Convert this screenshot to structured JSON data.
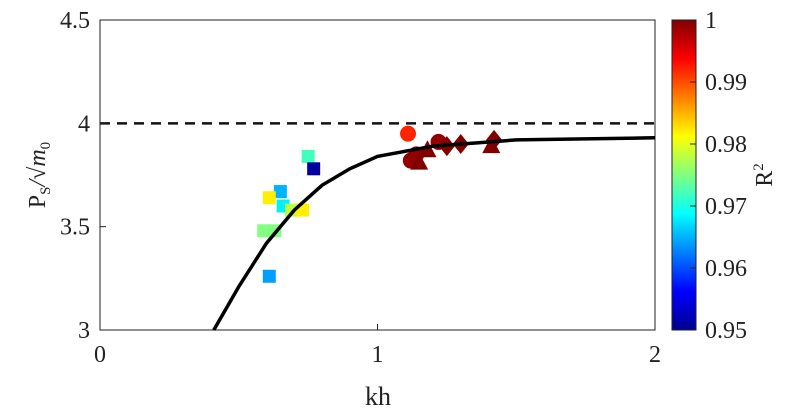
{
  "chart_data": {
    "type": "scatter",
    "xlabel": "kh",
    "ylabel_main": "P",
    "ylabel_sub": "S",
    "ylabel_rest": "/√m",
    "ylabel_sub2": "0",
    "xlim": [
      0,
      2
    ],
    "ylim": [
      3,
      4.5
    ],
    "xticks": [
      "0",
      "1",
      "2"
    ],
    "yticks": [
      "3",
      "3.5",
      "4",
      "4.5"
    ],
    "reference_line": {
      "y": 4,
      "style": "dashed"
    },
    "fit_curve": [
      [
        0.41,
        3.0
      ],
      [
        0.5,
        3.21
      ],
      [
        0.6,
        3.42
      ],
      [
        0.7,
        3.58
      ],
      [
        0.8,
        3.7
      ],
      [
        0.9,
        3.78
      ],
      [
        1.0,
        3.84
      ],
      [
        1.2,
        3.89
      ],
      [
        1.5,
        3.92
      ],
      [
        2.0,
        3.93
      ]
    ],
    "points": [
      {
        "x": 0.75,
        "y": 3.84,
        "r2": 0.972,
        "marker": "square"
      },
      {
        "x": 0.77,
        "y": 3.78,
        "r2": 0.951,
        "marker": "square"
      },
      {
        "x": 0.65,
        "y": 3.67,
        "r2": 0.965,
        "marker": "square"
      },
      {
        "x": 0.61,
        "y": 3.64,
        "r2": 0.982,
        "marker": "square"
      },
      {
        "x": 0.66,
        "y": 3.6,
        "r2": 0.968,
        "marker": "square"
      },
      {
        "x": 0.69,
        "y": 3.58,
        "r2": 0.978,
        "marker": "square"
      },
      {
        "x": 0.73,
        "y": 3.58,
        "r2": 0.982,
        "marker": "square"
      },
      {
        "x": 0.59,
        "y": 3.48,
        "r2": 0.975,
        "marker": "square"
      },
      {
        "x": 0.63,
        "y": 3.48,
        "r2": 0.975,
        "marker": "square"
      },
      {
        "x": 0.61,
        "y": 3.26,
        "r2": 0.964,
        "marker": "square"
      },
      {
        "x": 1.11,
        "y": 3.95,
        "r2": 0.992,
        "marker": "circle"
      },
      {
        "x": 1.12,
        "y": 3.82,
        "r2": 0.999,
        "marker": "circle"
      },
      {
        "x": 1.14,
        "y": 3.85,
        "r2": 0.999,
        "marker": "circle"
      },
      {
        "x": 1.22,
        "y": 3.91,
        "r2": 0.999,
        "marker": "circle"
      },
      {
        "x": 1.15,
        "y": 3.81,
        "r2": 1.0,
        "marker": "triangle"
      },
      {
        "x": 1.18,
        "y": 3.87,
        "r2": 1.0,
        "marker": "triangle"
      },
      {
        "x": 1.41,
        "y": 3.89,
        "r2": 1.0,
        "marker": "triangle"
      },
      {
        "x": 1.25,
        "y": 3.89,
        "r2": 1.0,
        "marker": "diamond"
      },
      {
        "x": 1.3,
        "y": 3.9,
        "r2": 1.0,
        "marker": "diamond"
      },
      {
        "x": 1.42,
        "y": 3.92,
        "r2": 1.0,
        "marker": "diamond"
      }
    ],
    "colorbar": {
      "label": "R",
      "label_sup": "2",
      "range": [
        0.95,
        1
      ],
      "colormap": "jet",
      "ticks": [
        "0.95",
        "0.96",
        "0.97",
        "0.98",
        "0.99",
        "1"
      ]
    },
    "grid": false
  }
}
